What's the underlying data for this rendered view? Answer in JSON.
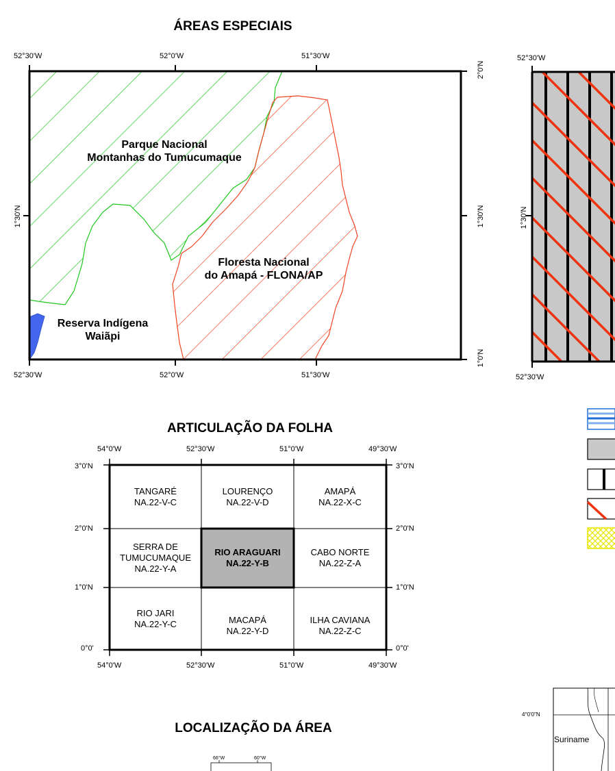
{
  "areas": {
    "title": "ÁREAS ESPECIAIS",
    "top_ticks": [
      "52°30'W",
      "52°0'W",
      "51°30'W"
    ],
    "bottom_ticks": [
      "52°30'W",
      "52°0'W",
      "51°30'W"
    ],
    "left_ticks": [
      "1°30'N"
    ],
    "right_ticks": [
      "2°0'N",
      "1°30'N",
      "1°0'N"
    ],
    "labels": {
      "parque": [
        "Parque Nacional",
        "Montanhas do Tumucumaque"
      ],
      "floresta": [
        "Floresta Nacional",
        "do Amapá - FLONA/AP"
      ],
      "reserva": [
        "Reserva Indígena",
        "Waiãpi"
      ]
    },
    "colors": {
      "parque": "#1ec81e",
      "floresta": "#ee4422",
      "reserva": "#4466ee"
    }
  },
  "second_map": {
    "top_ticks": [
      "52°30'W"
    ],
    "bottom_ticks": [
      "52°30'W"
    ],
    "left_ticks": [
      "1°30'N"
    ]
  },
  "articulacao": {
    "title": "ARTICULAÇÃO DA FOLHA",
    "top_ticks": [
      "54°0'W",
      "52°30'W",
      "51°0'W",
      "49°30'W"
    ],
    "bottom_ticks": [
      "54°0'W",
      "52°30'W",
      "51°0'W",
      "49°30'W"
    ],
    "left_ticks": [
      "3°0'N",
      "2°0'N",
      "1°0'N",
      "0°0'"
    ],
    "right_ticks": [
      "3°0'N",
      "2°0'N",
      "1°0'N",
      "0°0'"
    ],
    "cells": [
      {
        "name": "TANGARÉ",
        "code": "NA.22-V-C"
      },
      {
        "name": "LOURENÇO",
        "code": "NA.22-V-D"
      },
      {
        "name": "AMAPÁ",
        "code": "NA.22-X-C"
      },
      {
        "name": "SERRA DE TUMUCUMAQUE",
        "code": "NA.22-Y-A"
      },
      {
        "name": "RIO ARAGUARI",
        "code": "NA.22-Y-B"
      },
      {
        "name": "CABO NORTE",
        "code": "NA.22-Z-A"
      },
      {
        "name": "RIO JARI",
        "code": "NA.22-Y-C"
      },
      {
        "name": "MACAPÁ",
        "code": "NA.22-Y-D"
      },
      {
        "name": "ILHA CAVIANA",
        "code": "NA.22-Z-C"
      }
    ],
    "selected_cell": "RIO ARAGUARI",
    "selected_fill": "#b3b3b3"
  },
  "localizacao": {
    "title": "LOCALIZAÇÃO DA ÁREA",
    "ticks": [
      "66°W",
      "60°W"
    ]
  },
  "inset": {
    "lat_label": "4°0'0\"N",
    "country": "Suriname"
  },
  "legend_colors": {
    "river": "#1f6fd6",
    "gray": "#c8c8c8",
    "red": "#ee3311",
    "yellow": "#eeee00"
  }
}
